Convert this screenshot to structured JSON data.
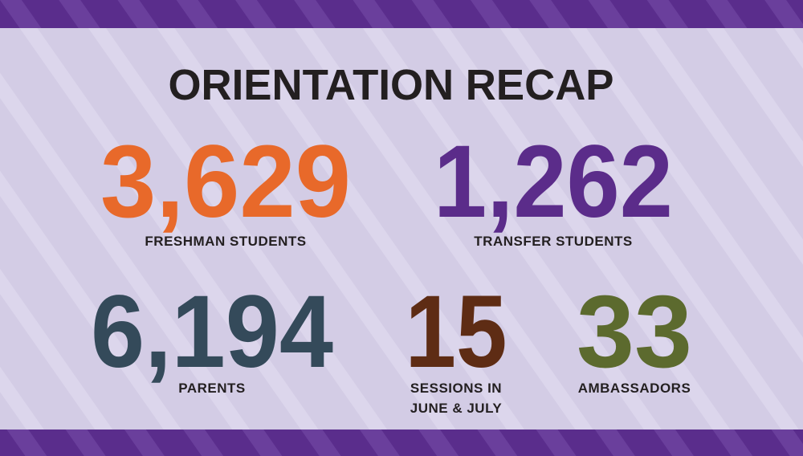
{
  "title": "ORIENTATION RECAP",
  "stats": [
    {
      "value": "3,629",
      "label": [
        "FRESHMAN STUDENTS"
      ]
    },
    {
      "value": "1,262",
      "label": [
        "TRANSFER STUDENTS"
      ]
    },
    {
      "value": "6,194",
      "label": [
        "PARENTS"
      ]
    },
    {
      "value": "15",
      "label": [
        "SESSIONS IN",
        "JUNE & JULY"
      ]
    },
    {
      "value": "33",
      "label": [
        "AMBASSADORS"
      ]
    }
  ]
}
